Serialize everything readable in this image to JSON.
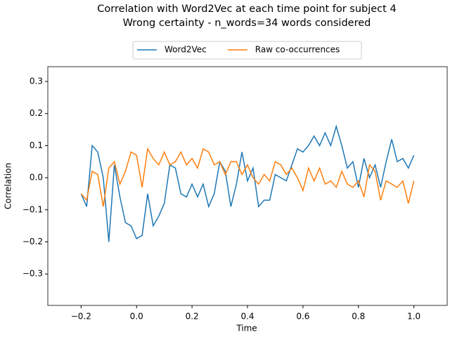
{
  "chart_data": {
    "type": "line",
    "title": "Correlation with Word2Vec at each time point for subject 4",
    "subtitle": "Wrong certainty - n_words=34 words considered",
    "xlabel": "Time",
    "ylabel": "Correlation",
    "x": [
      -0.2,
      -0.18,
      -0.16,
      -0.14,
      -0.12,
      -0.1,
      -0.08,
      -0.06,
      -0.04,
      -0.02,
      0,
      0.02,
      0.04,
      0.06,
      0.08,
      0.1,
      0.12,
      0.14,
      0.16,
      0.18,
      0.2,
      0.22,
      0.24,
      0.26,
      0.28,
      0.3,
      0.32,
      0.34,
      0.36,
      0.38,
      0.4,
      0.42,
      0.44,
      0.46,
      0.48,
      0.5,
      0.52,
      0.54,
      0.56,
      0.58,
      0.6,
      0.62,
      0.64,
      0.66,
      0.68,
      0.7,
      0.72,
      0.74,
      0.76,
      0.78,
      0.8,
      0.82,
      0.84,
      0.86,
      0.88,
      0.9,
      0.92,
      0.94,
      0.96,
      0.98,
      1.0
    ],
    "series": [
      {
        "name": "Word2Vec",
        "color": "#1f77b4",
        "values": [
          -0.05,
          -0.09,
          0.1,
          0.08,
          0.0,
          -0.2,
          0.04,
          -0.06,
          -0.14,
          -0.15,
          -0.19,
          -0.18,
          -0.05,
          -0.15,
          -0.12,
          -0.08,
          0.04,
          0.03,
          -0.05,
          -0.06,
          -0.02,
          -0.06,
          -0.02,
          -0.09,
          -0.05,
          0.05,
          0.02,
          -0.09,
          -0.02,
          0.08,
          -0.01,
          0.03,
          -0.09,
          -0.07,
          -0.07,
          0.01,
          0.0,
          -0.01,
          0.04,
          0.09,
          0.08,
          0.1,
          0.13,
          0.1,
          0.14,
          0.1,
          0.16,
          0.1,
          0.03,
          0.05,
          -0.03,
          0.06,
          0.0,
          0.04,
          -0.03,
          0.05,
          0.12,
          0.05,
          0.06,
          0.03,
          0.07
        ]
      },
      {
        "name": "Raw co-occurrences",
        "color": "#ff7f0e",
        "values": [
          -0.05,
          -0.07,
          0.02,
          0.01,
          -0.09,
          0.03,
          0.05,
          -0.02,
          0.02,
          0.08,
          0.07,
          -0.03,
          0.09,
          0.06,
          0.04,
          0.08,
          0.04,
          0.05,
          0.08,
          0.04,
          0.06,
          0.03,
          0.09,
          0.08,
          0.04,
          0.05,
          0.01,
          0.05,
          0.05,
          0.01,
          0.04,
          0.0,
          -0.02,
          0.01,
          -0.01,
          0.05,
          0.04,
          0.01,
          0.03,
          0.0,
          -0.04,
          0.03,
          -0.01,
          0.03,
          -0.02,
          -0.01,
          -0.03,
          0.02,
          -0.02,
          -0.03,
          -0.01,
          -0.06,
          0.04,
          0.02,
          -0.07,
          -0.01,
          -0.02,
          -0.03,
          -0.01,
          -0.08,
          -0.01
        ]
      }
    ],
    "xlim": [
      -0.32,
      1.12
    ],
    "ylim": [
      -0.398,
      0.346
    ],
    "xticks": [
      {
        "value": -0.2,
        "label": "−0.2"
      },
      {
        "value": 0,
        "label": "0.0"
      },
      0.2,
      0.4,
      0.6,
      0.8,
      {
        "value": 1,
        "label": "1.0"
      }
    ],
    "yticks": [
      {
        "value": -0.3,
        "label": "−0.3"
      },
      {
        "value": -0.2,
        "label": "−0.2"
      },
      {
        "value": -0.1,
        "label": "−0.1"
      },
      {
        "value": 0,
        "label": "0.0"
      },
      0.1,
      0.2,
      0.3
    ],
    "legend": "upper center outside"
  }
}
